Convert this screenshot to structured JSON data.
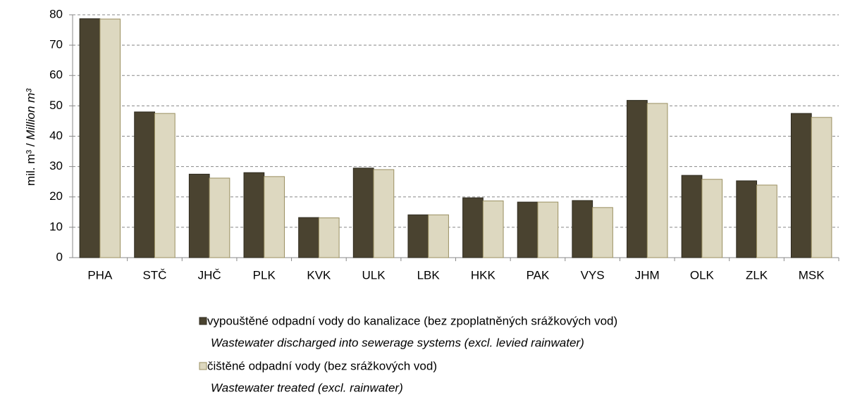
{
  "chart_data": {
    "type": "bar",
    "y_label": "mil. m³ / ",
    "y_label_en": "Million m³",
    "categories": [
      "PHA",
      "STČ",
      "JHČ",
      "PLK",
      "KVK",
      "ULK",
      "LBK",
      "HKK",
      "PAK",
      "VYS",
      "JHM",
      "OLK",
      "ZLK",
      "MSK"
    ],
    "series": [
      {
        "name": "vypouštěné odpadní vody do kanalizace (bez zpoplatněných srážkových vod)",
        "name_en": "Wastewater discharged into sewerage systems (excl. levied rainwater)",
        "color": "#4a4330",
        "border": "#2e2a1e",
        "values": [
          78.7,
          48,
          27.5,
          28,
          13.2,
          29.5,
          14.1,
          19.7,
          18.3,
          18.8,
          51.8,
          27.1,
          25.3,
          47.5
        ]
      },
      {
        "name": "čištěné odpadní vody (bez srážkových vod)",
        "name_en": "Wastewater treated (excl. rainwater)",
        "color": "#ddd8c0",
        "border": "#9a8f60",
        "values": [
          78.6,
          47.5,
          26.2,
          26.7,
          13.1,
          29,
          14.1,
          18.7,
          18.3,
          16.5,
          50.8,
          25.8,
          23.9,
          46.2
        ]
      }
    ],
    "ylim": [
      0,
      80
    ],
    "yticks": [
      0,
      10,
      20,
      30,
      40,
      50,
      60,
      70,
      80
    ],
    "grid": true
  }
}
